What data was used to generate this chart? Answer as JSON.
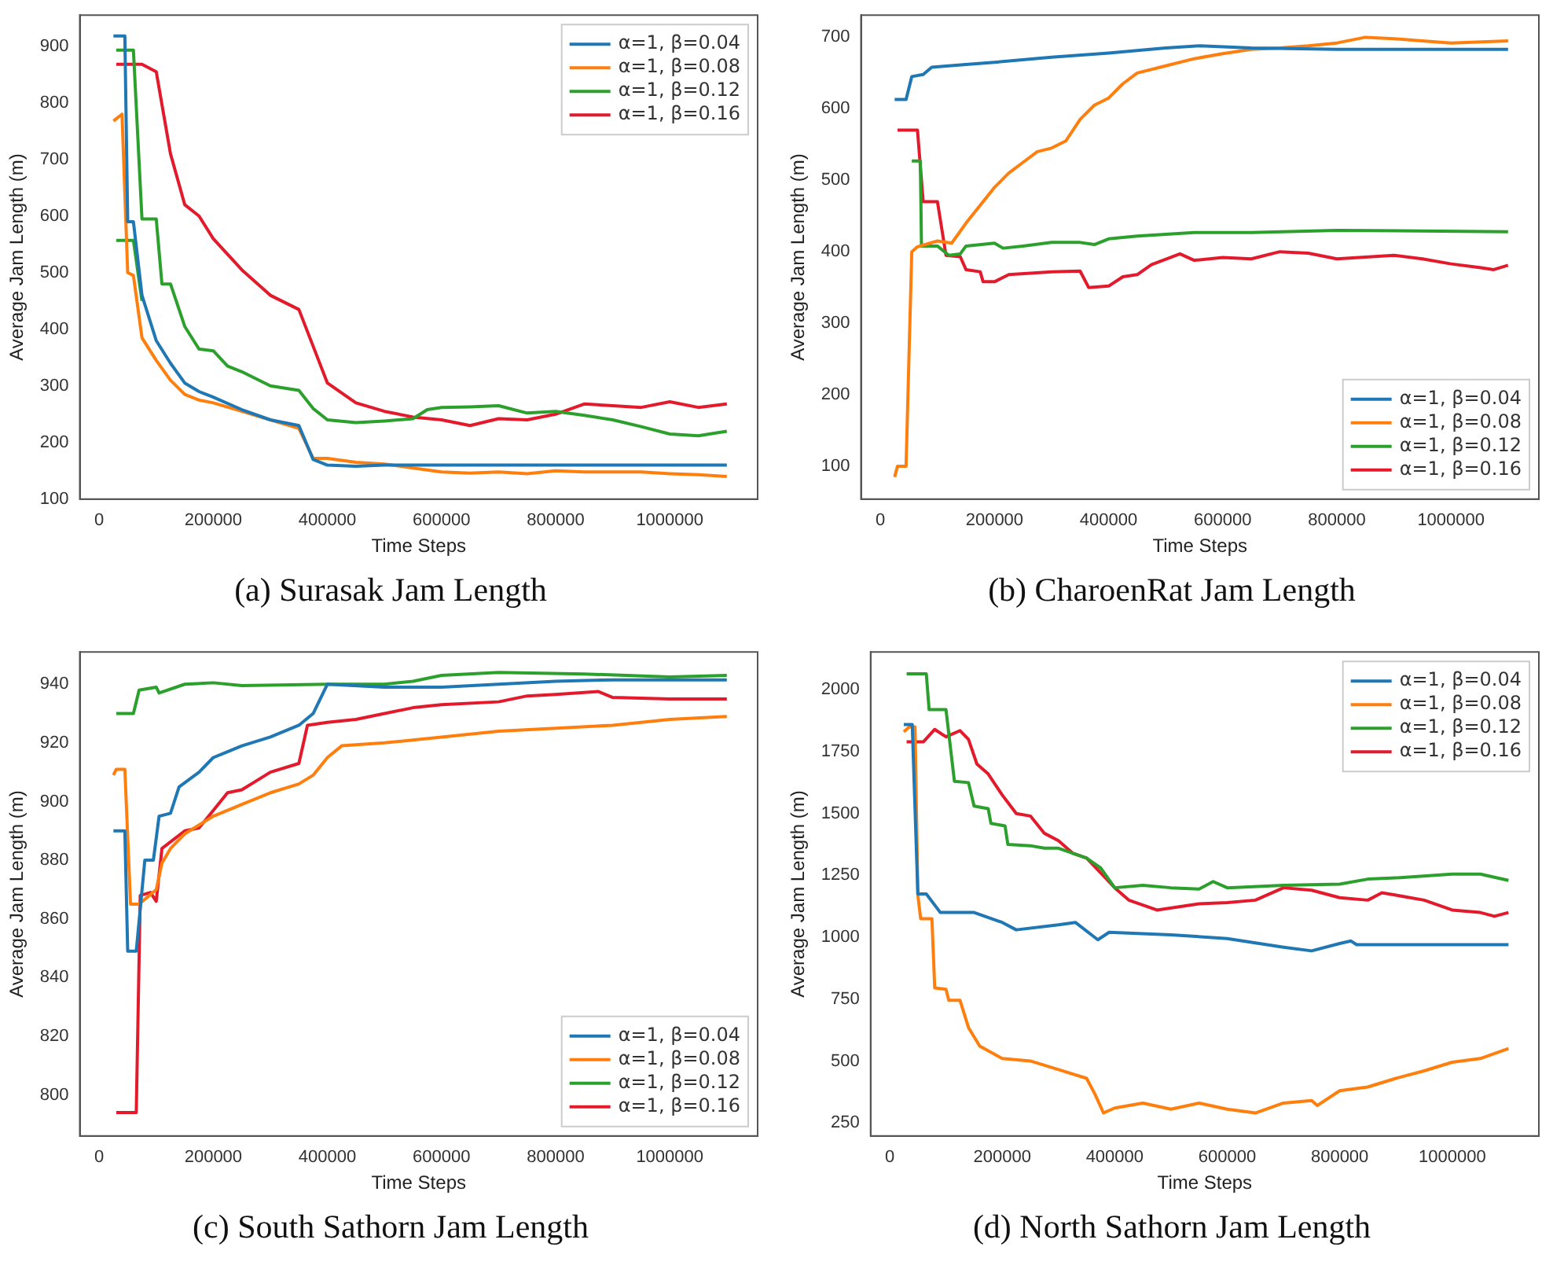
{
  "chart_data": [
    {
      "type": "line",
      "title": "(a) Surasak Jam Length",
      "xlabel": "Time Steps",
      "ylabel": "Average Jam Length (m)",
      "xlim": [
        -34000,
        1154000
      ],
      "xticks": [
        0,
        200000,
        400000,
        600000,
        800000,
        1000000
      ],
      "ylim": [
        100,
        955
      ],
      "yticks": [
        100,
        200,
        300,
        400,
        500,
        600,
        700,
        800,
        900
      ],
      "legend": "top right",
      "series": [
        {
          "name": "α=1, β=0.04",
          "color": "#1f77b4",
          "x": [
            25000,
            45000,
            50000,
            60000,
            75000,
            100000,
            125000,
            150000,
            175000,
            200000,
            250000,
            300000,
            350000,
            375000,
            400000,
            450000,
            500000,
            1100000
          ],
          "values": [
            918,
            918,
            590,
            590,
            460,
            380,
            340,
            305,
            290,
            280,
            258,
            240,
            230,
            170,
            160,
            158,
            160,
            160
          ]
        },
        {
          "name": "α=1, β=0.08",
          "color": "#ff7f0e",
          "x": [
            25000,
            40000,
            50000,
            60000,
            75000,
            100000,
            125000,
            150000,
            175000,
            200000,
            250000,
            300000,
            350000,
            375000,
            400000,
            450000,
            500000,
            550000,
            600000,
            650000,
            700000,
            750000,
            800000,
            850000,
            900000,
            950000,
            1000000,
            1050000,
            1100000
          ],
          "values": [
            768,
            780,
            500,
            495,
            385,
            345,
            310,
            285,
            275,
            270,
            255,
            240,
            225,
            172,
            172,
            165,
            162,
            155,
            148,
            146,
            148,
            145,
            150,
            148,
            148,
            148,
            145,
            143,
            140
          ]
        },
        {
          "name": "α=1, β=0.12",
          "color": "#2ca02c",
          "x": [
            30000,
            60000,
            75000,
            100000,
            110000,
            125000,
            150000,
            175000,
            200000,
            225000,
            250000,
            300000,
            350000,
            375000,
            400000,
            450000,
            500000,
            550000,
            575000,
            600000,
            650000,
            700000,
            750000,
            800000,
            850000,
            900000,
            950000,
            1000000,
            1050000,
            1100000
          ],
          "values": [
            893,
            893,
            595,
            595,
            480,
            480,
            405,
            365,
            362,
            335,
            325,
            300,
            292,
            260,
            240,
            235,
            238,
            242,
            258,
            262,
            263,
            265,
            252,
            255,
            248,
            240,
            228,
            215,
            212,
            220
          ]
        },
        {
          "name": "α=1, β=0.16",
          "color": "#e31a2c",
          "x": [
            30000,
            75000,
            100000,
            125000,
            150000,
            175000,
            200000,
            250000,
            300000,
            350000,
            375000,
            400000,
            450000,
            500000,
            550000,
            600000,
            650000,
            700000,
            750000,
            800000,
            850000,
            900000,
            950000,
            1000000,
            1050000,
            1100000
          ],
          "values": [
            868,
            868,
            855,
            710,
            620,
            600,
            560,
            505,
            460,
            435,
            370,
            305,
            270,
            255,
            245,
            240,
            230,
            242,
            240,
            250,
            268,
            265,
            262,
            272,
            262,
            268
          ]
        },
        {
          "color": "#2ca02c",
          "x": [
            30000,
            60000,
            75000
          ],
          "values": [
            557,
            557,
            450
          ]
        }
      ]
    },
    {
      "type": "line",
      "title": "(b) CharoenRat Jam Length",
      "xlabel": "Time Steps",
      "ylabel": "Average Jam Length (m)",
      "xlim": [
        -34000,
        1154000
      ],
      "xticks": [
        0,
        200000,
        400000,
        600000,
        800000,
        1000000
      ],
      "ylim": [
        54,
        731
      ],
      "yticks": [
        100,
        200,
        300,
        400,
        500,
        600,
        700
      ],
      "legend": "bottom right",
      "series": [
        {
          "name": "α=1, β=0.04",
          "color": "#1f77b4",
          "x": [
            25000,
            45000,
            55000,
            75000,
            90000,
            150000,
            200000,
            300000,
            400000,
            500000,
            560000,
            650000,
            800000,
            1100000
          ],
          "values": [
            613,
            613,
            645,
            648,
            658,
            662,
            665,
            672,
            678,
            685,
            688,
            685,
            683,
            683
          ]
        },
        {
          "name": "α=1, β=0.08",
          "color": "#ff7f0e",
          "x": [
            25000,
            30000,
            45000,
            55000,
            65000,
            100000,
            125000,
            150000,
            175000,
            200000,
            225000,
            250000,
            275000,
            300000,
            325000,
            350000,
            375000,
            400000,
            425000,
            450000,
            500000,
            550000,
            600000,
            650000,
            700000,
            750000,
            800000,
            850000,
            900000,
            950000,
            1000000,
            1100000
          ],
          "values": [
            85,
            100,
            100,
            400,
            407,
            415,
            412,
            440,
            465,
            490,
            510,
            525,
            540,
            545,
            555,
            585,
            605,
            615,
            635,
            650,
            660,
            670,
            677,
            683,
            685,
            688,
            692,
            700,
            698,
            695,
            692,
            695
          ]
        },
        {
          "name": "α=1, β=0.12",
          "color": "#2ca02c",
          "x": [
            55000,
            70000,
            72000,
            100000,
            120000,
            140000,
            150000,
            200000,
            215000,
            250000,
            300000,
            350000,
            375000,
            400000,
            450000,
            550000,
            650000,
            800000,
            1100000
          ],
          "values": [
            527,
            527,
            408,
            408,
            395,
            397,
            408,
            412,
            405,
            408,
            413,
            413,
            410,
            418,
            422,
            427,
            427,
            430,
            428
          ]
        },
        {
          "name": "α=1, β=0.16",
          "color": "#e31a2c",
          "x": [
            30000,
            65000,
            75000,
            100000,
            115000,
            140000,
            150000,
            175000,
            180000,
            200000,
            225000,
            300000,
            350000,
            365000,
            400000,
            425000,
            450000,
            475000,
            525000,
            550000,
            600000,
            650000,
            700000,
            750000,
            800000,
            900000,
            950000,
            1000000,
            1050000,
            1075000,
            1100000
          ],
          "values": [
            570,
            570,
            470,
            470,
            395,
            393,
            375,
            372,
            358,
            358,
            368,
            372,
            373,
            350,
            352,
            365,
            368,
            382,
            397,
            388,
            392,
            390,
            400,
            398,
            390,
            395,
            390,
            383,
            378,
            375,
            381
          ]
        }
      ]
    },
    {
      "type": "line",
      "title": "(c) South Sathorn Jam Length",
      "xlabel": "Time Steps",
      "ylabel": "Average Jam Length (m)",
      "xlim": [
        -34000,
        1154000
      ],
      "xticks": [
        0,
        200000,
        400000,
        600000,
        800000,
        1000000
      ],
      "ylim": [
        786,
        951
      ],
      "yticks": [
        800,
        820,
        840,
        860,
        880,
        900,
        920,
        940
      ],
      "legend": "bottom right",
      "series": [
        {
          "name": "α=1, β=0.04",
          "color": "#1f77b4",
          "x": [
            25000,
            45000,
            50000,
            65000,
            80000,
            95000,
            105000,
            125000,
            140000,
            175000,
            200000,
            225000,
            250000,
            300000,
            325000,
            350000,
            375000,
            400000,
            500000,
            600000,
            700000,
            800000,
            900000,
            1100000
          ],
          "values": [
            890,
            890,
            849,
            849,
            880,
            880,
            895,
            896,
            905,
            910,
            915,
            917,
            919,
            922,
            924,
            926,
            930,
            940,
            939,
            939,
            940,
            941,
            941.5,
            941.5
          ]
        },
        {
          "name": "α=1, β=0.08",
          "color": "#ff7f0e",
          "x": [
            25000,
            30000,
            45000,
            55000,
            70000,
            100000,
            110000,
            125000,
            150000,
            200000,
            250000,
            300000,
            350000,
            375000,
            400000,
            425000,
            500000,
            600000,
            700000,
            800000,
            900000,
            1000000,
            1100000
          ],
          "values": [
            909,
            911,
            911,
            865,
            865,
            870,
            879,
            884,
            889,
            895,
            899,
            903,
            906,
            909,
            915,
            919,
            920,
            922,
            924,
            925,
            926,
            928,
            929
          ]
        },
        {
          "name": "α=1, β=0.12",
          "color": "#2ca02c",
          "x": [
            30000,
            60000,
            70000,
            100000,
            105000,
            150000,
            200000,
            250000,
            400000,
            500000,
            550000,
            600000,
            700000,
            850000,
            1000000,
            1100000
          ],
          "values": [
            930,
            930,
            938,
            939,
            937,
            940,
            940.5,
            939.5,
            940,
            940,
            941,
            943,
            944,
            943.5,
            942.5,
            943
          ]
        },
        {
          "name": "α=1, β=0.16",
          "color": "#e31a2c",
          "x": [
            30000,
            65000,
            72000,
            90000,
            100000,
            110000,
            150000,
            175000,
            200000,
            225000,
            250000,
            275000,
            300000,
            350000,
            365000,
            400000,
            450000,
            500000,
            550000,
            600000,
            700000,
            750000,
            800000,
            875000,
            900000,
            1000000,
            1100000
          ],
          "values": [
            794,
            794,
            868,
            869,
            866,
            884,
            890,
            891,
            897,
            903,
            904,
            907,
            910,
            913,
            926,
            927,
            928,
            930,
            932,
            933,
            934,
            936,
            936.5,
            937.5,
            935.5,
            935,
            935
          ]
        }
      ]
    },
    {
      "type": "line",
      "title": "(d) North Sathorn Jam Length",
      "xlabel": "Time Steps",
      "ylabel": "Average Jam Length (m)",
      "xlim": [
        -34000,
        1154000
      ],
      "xticks": [
        0,
        200000,
        400000,
        600000,
        800000,
        1000000
      ],
      "ylim": [
        197,
        2153
      ],
      "yticks": [
        250,
        500,
        750,
        1000,
        1250,
        1500,
        1750,
        2000
      ],
      "legend": "top right",
      "series": [
        {
          "name": "α=1, β=0.04",
          "color": "#1f77b4",
          "x": [
            25000,
            40000,
            50000,
            65000,
            90000,
            150000,
            200000,
            225000,
            300000,
            330000,
            370000,
            390000,
            500000,
            600000,
            700000,
            750000,
            800000,
            820000,
            830000,
            1100000
          ],
          "values": [
            1860,
            1860,
            1175,
            1175,
            1100,
            1100,
            1060,
            1030,
            1050,
            1060,
            990,
            1020,
            1010,
            995,
            960,
            945,
            975,
            985,
            970,
            970
          ]
        },
        {
          "name": "α=1, β=0.08",
          "color": "#ff7f0e",
          "x": [
            25000,
            35000,
            45000,
            50000,
            55000,
            75000,
            80000,
            100000,
            105000,
            125000,
            140000,
            160000,
            200000,
            250000,
            300000,
            350000,
            365000,
            380000,
            400000,
            450000,
            500000,
            550000,
            600000,
            650000,
            700000,
            750000,
            760000,
            800000,
            850000,
            900000,
            950000,
            1000000,
            1050000,
            1100000
          ],
          "values": [
            1830,
            1850,
            1850,
            1170,
            1075,
            1075,
            795,
            790,
            745,
            745,
            635,
            560,
            510,
            500,
            465,
            430,
            365,
            290,
            310,
            330,
            305,
            330,
            305,
            290,
            330,
            340,
            320,
            380,
            395,
            430,
            460,
            495,
            510,
            550
          ]
        },
        {
          "name": "α=1, β=0.12",
          "color": "#2ca02c",
          "x": [
            30000,
            65000,
            70000,
            100000,
            115000,
            140000,
            150000,
            175000,
            180000,
            205000,
            210000,
            250000,
            275000,
            300000,
            350000,
            375000,
            400000,
            450000,
            500000,
            550000,
            575000,
            600000,
            700000,
            800000,
            850000,
            900000,
            1000000,
            1050000,
            1100000
          ],
          "values": [
            2065,
            2065,
            1920,
            1920,
            1630,
            1625,
            1530,
            1520,
            1460,
            1450,
            1375,
            1370,
            1360,
            1360,
            1320,
            1280,
            1200,
            1210,
            1200,
            1195,
            1225,
            1200,
            1210,
            1215,
            1235,
            1240,
            1255,
            1255,
            1230
          ]
        },
        {
          "name": "α=1, β=0.16",
          "color": "#e31a2c",
          "x": [
            30000,
            60000,
            80000,
            100000,
            125000,
            140000,
            155000,
            175000,
            200000,
            225000,
            250000,
            275000,
            300000,
            325000,
            350000,
            375000,
            400000,
            425000,
            450000,
            475000,
            550000,
            600000,
            650000,
            700000,
            750000,
            800000,
            850000,
            875000,
            900000,
            950000,
            1000000,
            1050000,
            1075000,
            1100000
          ],
          "values": [
            1790,
            1790,
            1840,
            1810,
            1835,
            1800,
            1700,
            1660,
            1575,
            1500,
            1490,
            1420,
            1390,
            1340,
            1320,
            1260,
            1200,
            1150,
            1130,
            1110,
            1135,
            1140,
            1150,
            1200,
            1190,
            1160,
            1150,
            1180,
            1170,
            1150,
            1110,
            1100,
            1085,
            1100
          ]
        }
      ]
    }
  ]
}
